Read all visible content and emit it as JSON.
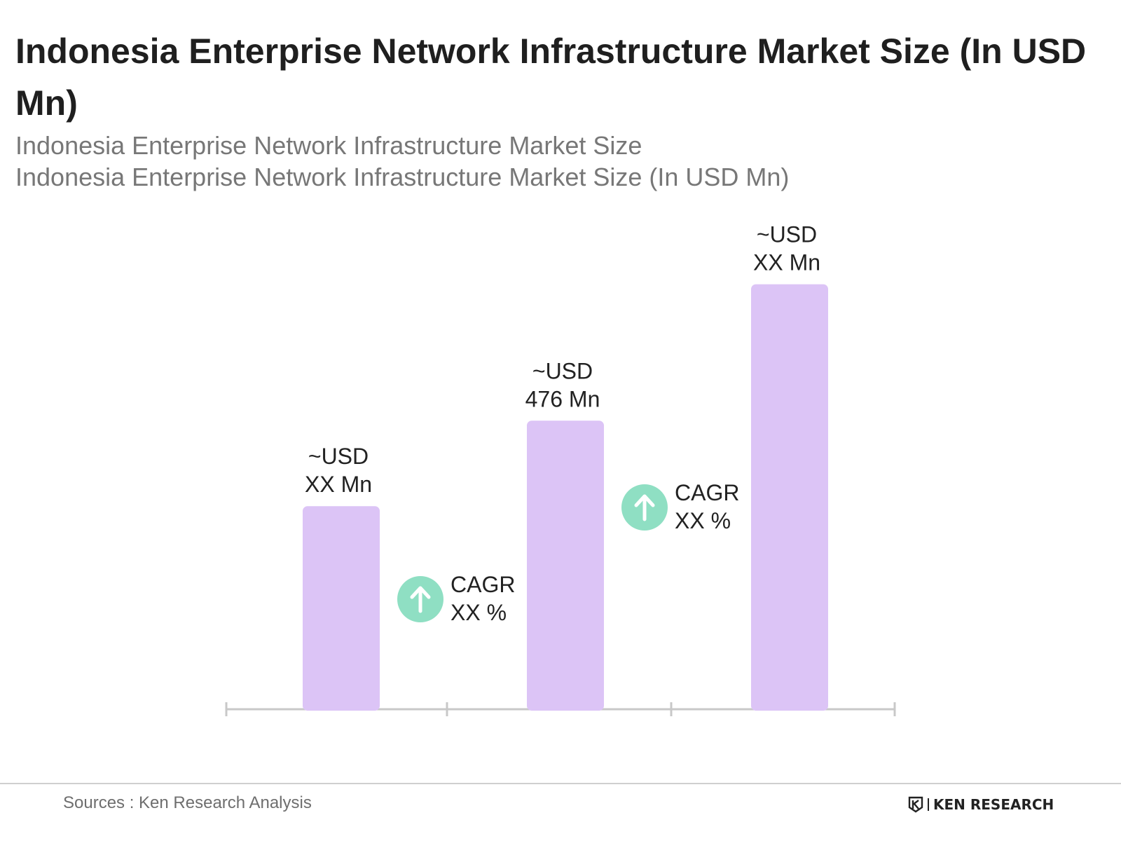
{
  "title": "Indonesia Enterprise Network Infrastructure Market Size (In USD Mn)",
  "subtitle_1": "Indonesia Enterprise Network Infrastructure Market Size",
  "subtitle_2": "Indonesia Enterprise Network Infrastructure Market Size (In USD Mn)",
  "source": "Sources : Ken Research Analysis",
  "brand": "KEN RESEARCH",
  "icons": {
    "cagr": "arrow-up-icon",
    "brand": "ken-research-logo-icon"
  },
  "colors": {
    "bar": "#dcc4f6",
    "cagr_badge": "#8fdfc3",
    "axis": "#c8c8c8"
  },
  "chart_data": {
    "type": "bar",
    "title": "Indonesia Enterprise Network Infrastructure Market Size (In USD Mn)",
    "xlabel": "",
    "ylabel": "",
    "categories": [
      "",
      "",
      ""
    ],
    "values": [
      335,
      476,
      701
    ],
    "ylim": [
      0,
      800
    ],
    "data_labels": [
      [
        "~USD",
        "XX Mn"
      ],
      [
        "~USD",
        "476 Mn"
      ],
      [
        "~USD",
        "XX Mn"
      ]
    ],
    "cagr_labels": [
      [
        "CAGR",
        "XX %"
      ],
      [
        "CAGR",
        "XX %"
      ]
    ],
    "grid": false,
    "legend": "none"
  }
}
